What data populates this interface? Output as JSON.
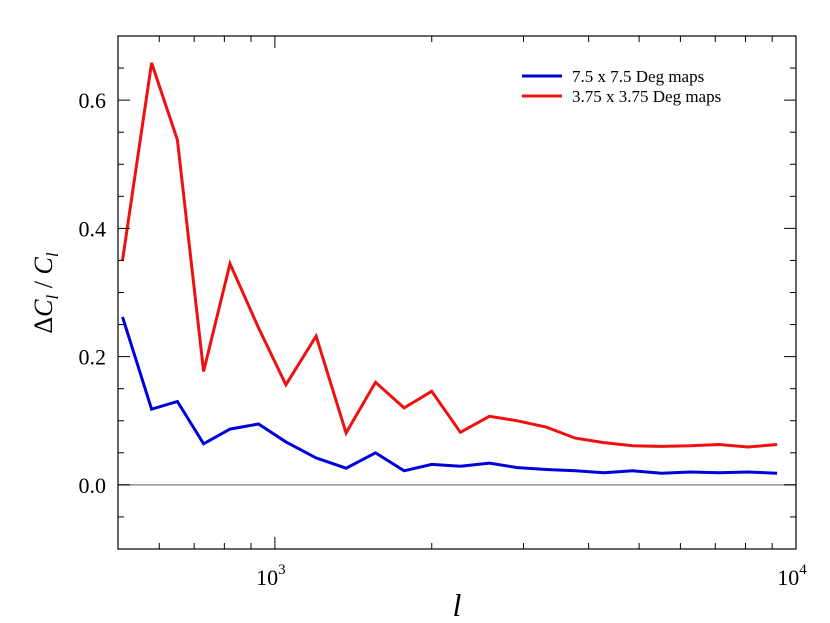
{
  "chart_data": {
    "type": "line",
    "xscale": "log",
    "xlabel": "l",
    "ylabel": "ΔC_l / C_l",
    "xlim": [
      500,
      10000
    ],
    "ylim": [
      -0.1,
      0.7
    ],
    "x_major_ticks": [
      1000,
      10000
    ],
    "x_tick_labels": [
      {
        "base": "10",
        "exp": "3"
      },
      {
        "base": "10",
        "exp": "4"
      }
    ],
    "y_ticks": [
      0.0,
      0.2,
      0.4,
      0.6
    ],
    "y_tick_labels": [
      "0.0",
      "0.2",
      "0.4",
      "0.6"
    ],
    "reference_line": {
      "y": 0.0,
      "color": "#909090"
    },
    "legend": {
      "position": "top-right"
    },
    "series": [
      {
        "name": "7.5 x 7.5 Deg maps",
        "color": "#0000dd",
        "x": [
          510,
          580,
          650,
          730,
          820,
          930,
          1050,
          1200,
          1370,
          1560,
          1770,
          2000,
          2270,
          2580,
          2920,
          3320,
          3770,
          4280,
          4860,
          5520,
          6270,
          7120,
          8090,
          9200
        ],
        "y": [
          0.262,
          0.118,
          0.13,
          0.064,
          0.087,
          0.095,
          0.067,
          0.042,
          0.026,
          0.05,
          0.022,
          0.032,
          0.029,
          0.034,
          0.027,
          0.024,
          0.022,
          0.019,
          0.022,
          0.018,
          0.02,
          0.019,
          0.02,
          0.018
        ]
      },
      {
        "name": "3.75 x 3.75 Deg maps",
        "color": "#ee1111",
        "x": [
          510,
          580,
          650,
          730,
          820,
          930,
          1050,
          1200,
          1370,
          1560,
          1770,
          2000,
          2270,
          2580,
          2920,
          3320,
          3770,
          4280,
          4860,
          5520,
          6270,
          7120,
          8090,
          9200
        ],
        "y": [
          0.35,
          0.658,
          0.538,
          0.177,
          0.345,
          0.245,
          0.156,
          0.232,
          0.081,
          0.16,
          0.12,
          0.146,
          0.082,
          0.107,
          0.1,
          0.09,
          0.073,
          0.066,
          0.061,
          0.06,
          0.061,
          0.063,
          0.059,
          0.063
        ]
      }
    ]
  }
}
